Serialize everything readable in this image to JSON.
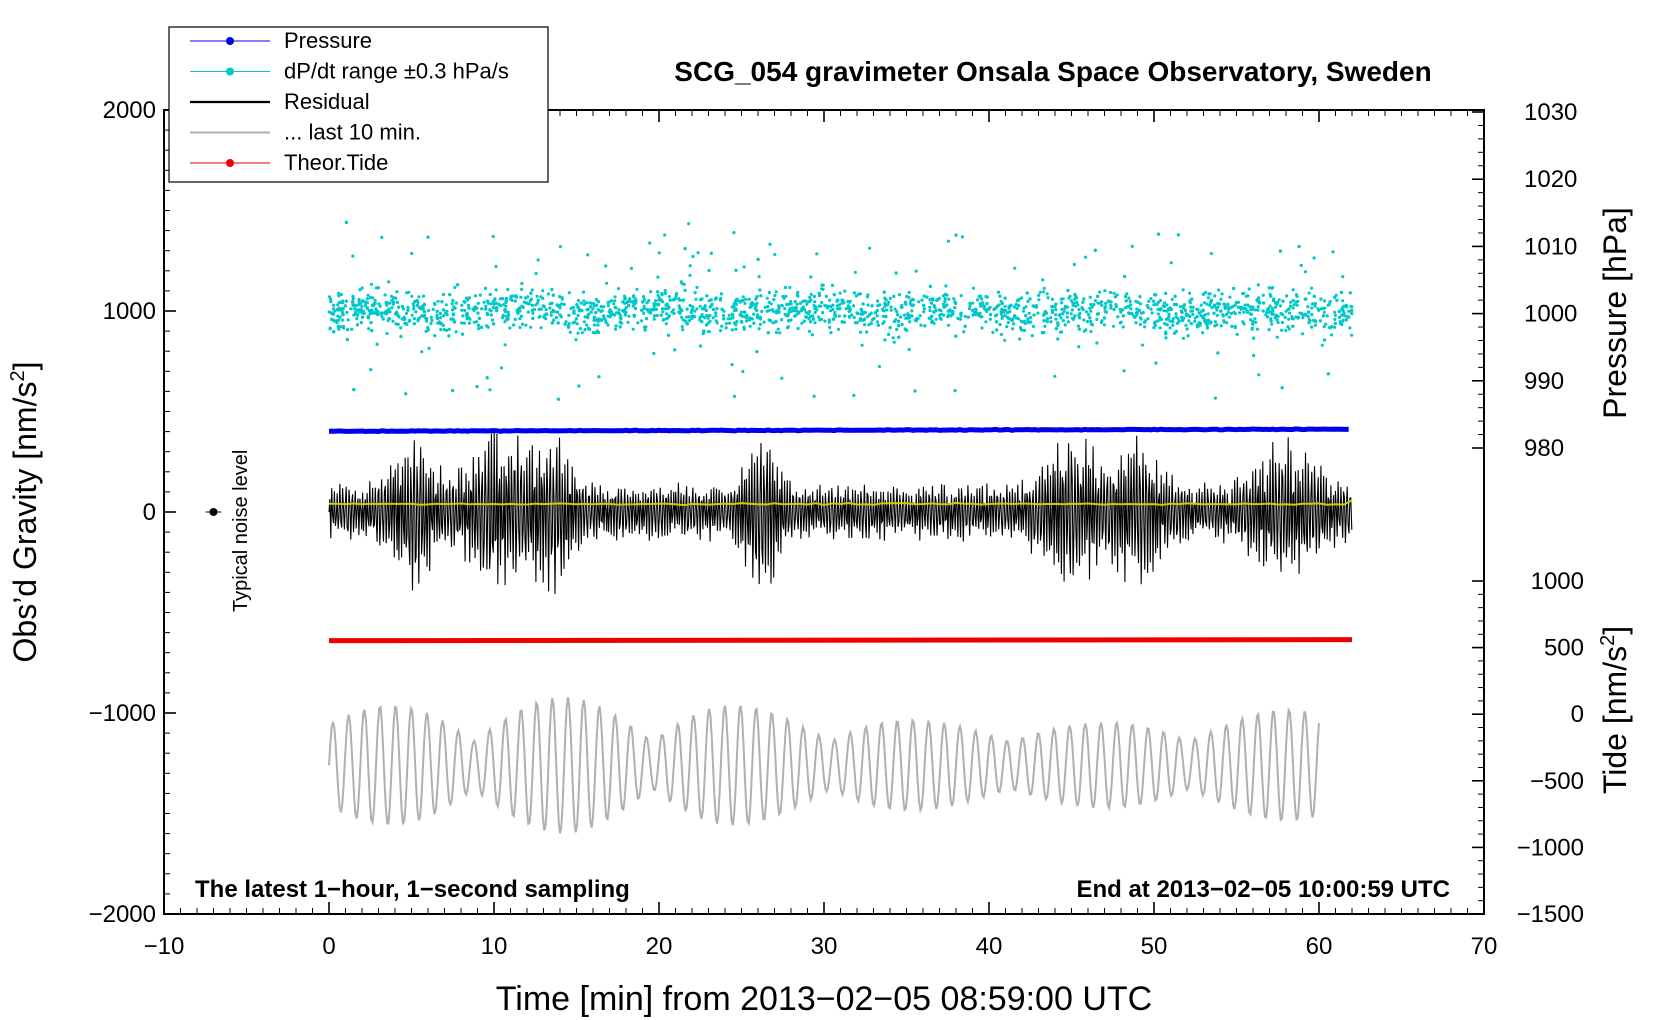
{
  "chart_data": {
    "type": "line",
    "title": "SCG_054 gravimeter Onsala Space Observatory, Sweden",
    "xlabel": "Time [min] from 2013−02−05 08:59:00 UTC",
    "ylabel_left_main": "Obs’d Gravity [nm/s",
    "ylabel_left_sup": "2",
    "ylabel_left_close": "]",
    "ylabel_right_pressure": "Pressure [hPa]",
    "ylabel_right_tide_main": "Tide [nm/s",
    "ylabel_right_tide_sup": "2",
    "ylabel_right_tide_close": "]",
    "xlim": [
      -10,
      70
    ],
    "ylim_gravity": [
      -2000,
      2000
    ],
    "x_ticks": [
      "−10",
      "0",
      "10",
      "20",
      "30",
      "40",
      "50",
      "60",
      "70"
    ],
    "x_tick_values": [
      -10,
      0,
      10,
      20,
      30,
      40,
      50,
      60,
      70
    ],
    "gravity_ticks": [
      "−2000",
      "−1000",
      "0",
      "1000",
      "2000"
    ],
    "gravity_tick_values": [
      -2000,
      -1000,
      0,
      1000,
      2000
    ],
    "pressure_ticks": [
      "980",
      "990",
      "1000",
      "1010",
      "1020",
      "1030"
    ],
    "pressure_tick_values": [
      980,
      990,
      1000,
      1010,
      1020,
      1030
    ],
    "tide_ticks": [
      "−1500",
      "−1000",
      "−500",
      "0",
      "500",
      "1000"
    ],
    "tide_tick_values": [
      -1500,
      -1000,
      -500,
      0,
      500,
      1000
    ],
    "legend_position": "top-left",
    "legend": [
      {
        "label": "Pressure",
        "color": "#0000ee",
        "style": "line-dot"
      },
      {
        "label": "dP/dt range ±0.3 hPa/s",
        "color": "#00c8c8",
        "style": "line-dot"
      },
      {
        "label": "Residual",
        "color": "#000000",
        "style": "line"
      },
      {
        "label": "... last 10 min.",
        "color": "#b0b0b0",
        "style": "line"
      },
      {
        "label": "Theor.Tide",
        "color": "#ee0000",
        "style": "line-dot"
      }
    ],
    "annotations": {
      "noise": "Typical noise level",
      "bottom_left": "The latest 1−hour, 1−second sampling",
      "bottom_right": "End at 2013−02−05 10:00:59 UTC"
    },
    "series": [
      {
        "name": "Pressure",
        "color": "#0000ee",
        "axis": "pressure",
        "x_range": [
          0,
          62
        ],
        "approx_value": 982.5
      },
      {
        "name": "dP/dt range ±0.3 hPa/s",
        "color": "#00c8c8",
        "axis": "gravity",
        "x_range": [
          0,
          62
        ],
        "center": 1000,
        "spread": 450
      },
      {
        "name": "Residual",
        "color": "#000000",
        "axis": "gravity",
        "x_range": [
          0,
          62
        ],
        "center": 0,
        "amplitude_range": [
          -550,
          600
        ]
      },
      {
        "name": "Theor.Tide",
        "color": "#ee0000",
        "axis": "gravity",
        "x_range": [
          0,
          62
        ],
        "approx_value": -640
      },
      {
        "name": "... last 10 min.",
        "color": "#b0b0b0",
        "axis": "gravity",
        "x_range": [
          0,
          60
        ],
        "center": -1260,
        "amplitude_range": [
          -1600,
          -920
        ]
      }
    ],
    "noise_marker": {
      "x": -7,
      "y": 0
    },
    "yellow_trend": {
      "color": "#cccc00",
      "approx_value": 40
    }
  }
}
